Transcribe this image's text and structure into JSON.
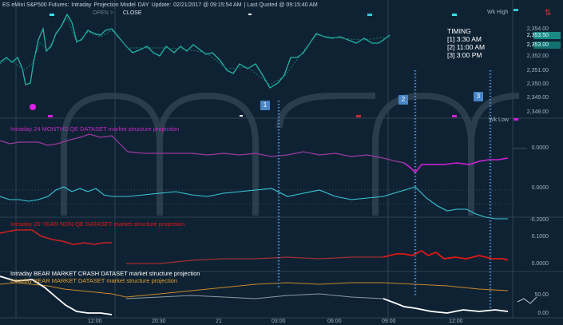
{
  "header": {
    "title_parts": [
      "ES eMini S&P500 Futures:",
      "Intraday",
      "Projection Model",
      "DAY",
      "Update:",
      "02/21/2017 @ 09:15:54 AM",
      "| Last Quoted @ 09:15:40 AM"
    ],
    "open_label": "OPEN >",
    "close_label": "CLOSE",
    "wk_high": "Wk High",
    "wk_low": "Wk Low"
  },
  "timing": {
    "title": "TIMING",
    "items": [
      "[1] 3:30 AM",
      "[2] 11:00 AM",
      "[3] 3:00 PM"
    ]
  },
  "markers": [
    "1",
    "2",
    "3"
  ],
  "price_axis": {
    "labels": [
      "2,354.00",
      "2,353.50",
      "2,353.00",
      "2,352.00",
      "2,351.00",
      "2,350.00",
      "2,349.00",
      "2,348.00"
    ],
    "current_price": "2,353.50",
    "prev_price": "2,353.00"
  },
  "panels": {
    "qe": {
      "label": "Intraday 24 MONTHS QE DATASET market structure projection",
      "color": "#c628c6",
      "axis": [
        "0.0000",
        "0.0000",
        "-0.2000"
      ]
    },
    "nonqe": {
      "label": "Intraday 20 YEAR NON-QE DATASET market structure  projection",
      "color": "#e01818",
      "axis": [
        "0.1000",
        "0.0000"
      ]
    },
    "crash": {
      "label": "Intraday BEAR MARKET CRASH  DATASET  market structure projection",
      "color": "#ffffff",
      "axis": [
        "50.00",
        "0.00"
      ]
    },
    "bear": {
      "label": "Intraday BEAR MARKET DATASET  market structure projection",
      "color": "#e0a030"
    }
  },
  "time_axis": [
    "12:00",
    "20:30",
    "21",
    "03:00",
    "06:00",
    "09:00",
    "12:00"
  ],
  "colors": {
    "background": "#0f2233",
    "price_line": "#22b3a8",
    "marker": "#4a86c8",
    "cyan_line": "#38c8d8",
    "watermark": "#2a3d4d"
  }
}
